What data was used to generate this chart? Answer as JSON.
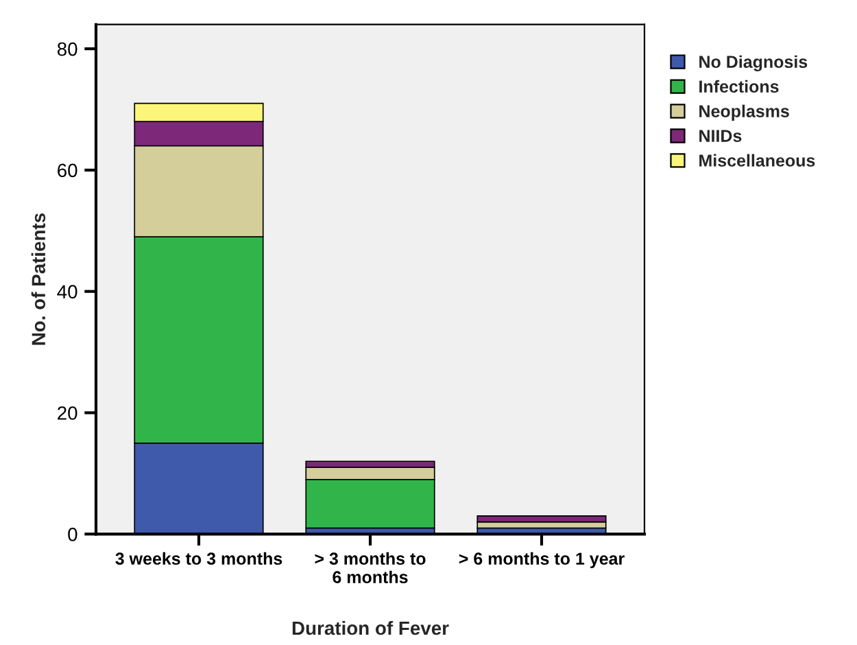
{
  "chart_data": {
    "type": "bar",
    "stacked": true,
    "xlabel": "Duration of Fever",
    "ylabel": "No. of Patients",
    "categories": [
      "3 weeks to 3 months",
      "> 3 months to\n6 months",
      "> 6 months to 1 year"
    ],
    "series": [
      {
        "name": "No Diagnosis",
        "color": "#3f59ab",
        "values": [
          15,
          1,
          1
        ]
      },
      {
        "name": "Infections",
        "color": "#31b54a",
        "values": [
          34,
          8,
          0
        ]
      },
      {
        "name": "Neoplasms",
        "color": "#d4ce9a",
        "values": [
          15,
          2,
          1
        ]
      },
      {
        "name": "NIIDs",
        "color": "#7d2879",
        "values": [
          4,
          1,
          1
        ]
      },
      {
        "name": "Miscellaneous",
        "color": "#fbf57a",
        "values": [
          3,
          0,
          0
        ]
      }
    ],
    "ylim": [
      0,
      84
    ],
    "yticks": [
      0,
      20,
      40,
      60,
      80
    ],
    "grid": false,
    "legend": "right"
  }
}
